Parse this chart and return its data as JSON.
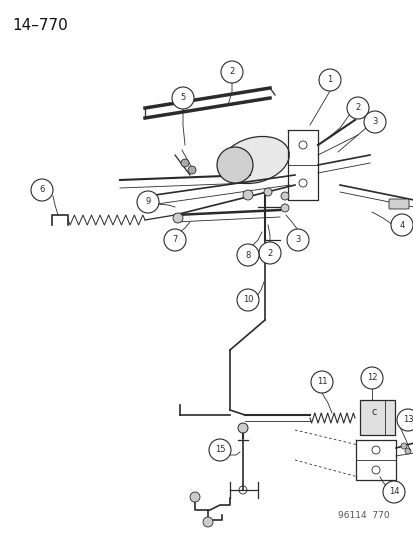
{
  "title": "14–770",
  "footer": "96114  770",
  "bg_color": "#ffffff",
  "line_color": "#2a2a2a",
  "title_fontsize": 11,
  "footer_fontsize": 6.5,
  "callout_r": 0.02,
  "callout_fontsize": 6.0
}
